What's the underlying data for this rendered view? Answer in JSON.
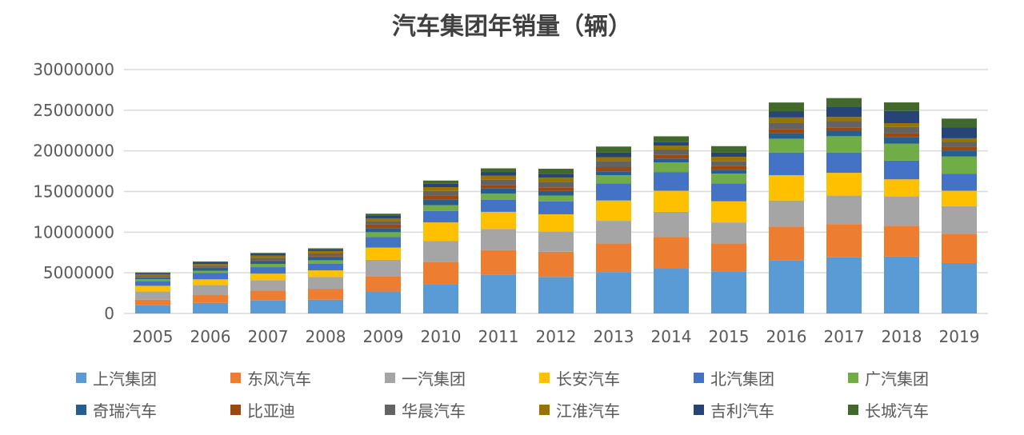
{
  "chart_data": {
    "type": "bar",
    "stacked": true,
    "title": "汽车集团年销量（辆）",
    "xlabel": "",
    "ylabel": "",
    "ylim": [
      0,
      30000000
    ],
    "yticks": [
      "0",
      "5000000",
      "10000000",
      "15000000",
      "20000000",
      "25000000",
      "30000000"
    ],
    "grid": true,
    "legend": "bottom",
    "categories": [
      "2005",
      "2006",
      "2007",
      "2008",
      "2009",
      "2010",
      "2011",
      "2012",
      "2013",
      "2014",
      "2015",
      "2016",
      "2017",
      "2018",
      "2019"
    ],
    "series": [
      {
        "name": "上汽集团",
        "color": "#5B9BD5",
        "values": [
          1000000,
          1300000,
          1600000,
          1700000,
          2700000,
          3600000,
          4800000,
          4500000,
          5100000,
          5600000,
          5200000,
          6500000,
          6900000,
          7000000,
          6200000
        ]
      },
      {
        "name": "东风汽车",
        "color": "#ED7D31",
        "values": [
          700000,
          1000000,
          1200000,
          1300000,
          1900000,
          2700000,
          3000000,
          3100000,
          3500000,
          3800000,
          3400000,
          4200000,
          4100000,
          3800000,
          3600000
        ]
      },
      {
        "name": "一汽集团",
        "color": "#A5A5A5",
        "values": [
          1000000,
          1200000,
          1300000,
          1500000,
          2000000,
          2600000,
          2600000,
          2500000,
          2800000,
          3100000,
          2600000,
          3200000,
          3500000,
          3600000,
          3400000
        ]
      },
      {
        "name": "长安汽车",
        "color": "#FFC000",
        "values": [
          700000,
          700000,
          800000,
          800000,
          1500000,
          2300000,
          2100000,
          2100000,
          2500000,
          2600000,
          2600000,
          3100000,
          2800000,
          2100000,
          1900000
        ]
      },
      {
        "name": "北汽集团",
        "color": "#4472C4",
        "values": [
          600000,
          800000,
          800000,
          800000,
          1300000,
          1400000,
          1500000,
          1600000,
          2100000,
          2300000,
          2200000,
          2800000,
          2500000,
          2300000,
          2100000
        ]
      },
      {
        "name": "广汽集团",
        "color": "#70AD47",
        "values": [
          220000,
          260000,
          400000,
          450000,
          600000,
          720000,
          730000,
          710000,
          1000000,
          1170000,
          1200000,
          1700000,
          2000000,
          2100000,
          2100000
        ]
      },
      {
        "name": "奇瑞汽车",
        "color": "#255E91",
        "values": [
          190000,
          300000,
          350000,
          330000,
          500000,
          680000,
          640000,
          550000,
          490000,
          480000,
          470000,
          700000,
          680000,
          750000,
          750000
        ]
      },
      {
        "name": "比亚迪",
        "color": "#9E480E",
        "values": [
          30000,
          60000,
          100000,
          170000,
          450000,
          520000,
          440000,
          460000,
          510000,
          440000,
          440000,
          500000,
          410000,
          520000,
          450000
        ]
      },
      {
        "name": "华晨汽车",
        "color": "#636363",
        "values": [
          180000,
          250000,
          300000,
          330000,
          400000,
          560000,
          640000,
          690000,
          770000,
          680000,
          600000,
          770000,
          770000,
          780000,
          600000
        ]
      },
      {
        "name": "江淮汽车",
        "color": "#997300",
        "values": [
          180000,
          220000,
          260000,
          300000,
          360000,
          460000,
          490000,
          490000,
          460000,
          470000,
          560000,
          640000,
          510000,
          460000,
          450000
        ]
      },
      {
        "name": "吉利汽车",
        "color": "#264478",
        "values": [
          150000,
          200000,
          220000,
          200000,
          330000,
          410000,
          420000,
          480000,
          550000,
          420000,
          510000,
          770000,
          1250000,
          1500000,
          1360000
        ]
      },
      {
        "name": "长城汽车",
        "color": "#43682B",
        "values": [
          100000,
          100000,
          120000,
          140000,
          230000,
          400000,
          490000,
          620000,
          750000,
          730000,
          800000,
          1070000,
          1070000,
          1050000,
          1060000
        ]
      }
    ]
  }
}
